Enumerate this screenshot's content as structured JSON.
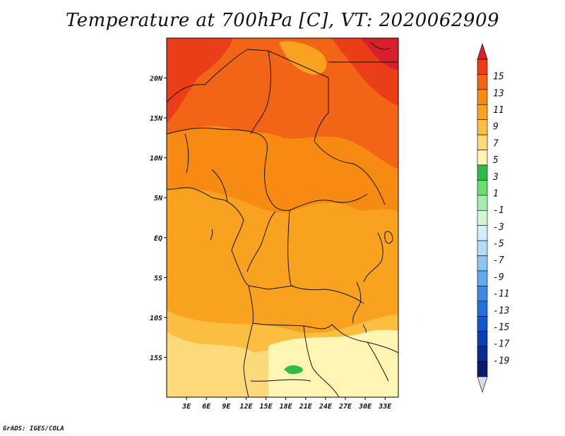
{
  "title": "Temperature at 700hPa [C], VT: 2020062909",
  "credit": "GrADS: IGES/COLA",
  "lat_labels": [
    "20N",
    "15N",
    "10N",
    "5N",
    "EQ",
    "5S",
    "10S",
    "15S"
  ],
  "lon_labels": [
    "3E",
    "6E",
    "9E",
    "12E",
    "15E",
    "18E",
    "21E",
    "24E",
    "27E",
    "30E",
    "33E"
  ],
  "map_extent": {
    "lon_min": 0,
    "lon_max": 35,
    "lat_min": -20,
    "lat_max": 25
  },
  "colorbar": {
    "labels": [
      "15",
      "13",
      "11",
      "9",
      "7",
      "5",
      "3",
      "1",
      "-1",
      "-3",
      "-5",
      "-7",
      "-9",
      "-11",
      "-13",
      "-15",
      "-17",
      "-19"
    ],
    "colors": [
      "#d8202a",
      "#eb3d17",
      "#f26416",
      "#f68a12",
      "#f9a21f",
      "#fcbe40",
      "#fcd97a",
      "#fef5b3",
      "#2fbb47",
      "#6fdc6e",
      "#a8ecab",
      "#d2f6d4",
      "#d3ecfb",
      "#b4dbf8",
      "#8cc4f3",
      "#62aaee",
      "#3d8be5",
      "#2471dc",
      "#1456cc",
      "#0d3fb2",
      "#0a2c8e",
      "#0a1a6a",
      "#d8d6f0"
    ]
  },
  "colors": {
    "land_outline": "#111111",
    "frame": "#000000"
  }
}
